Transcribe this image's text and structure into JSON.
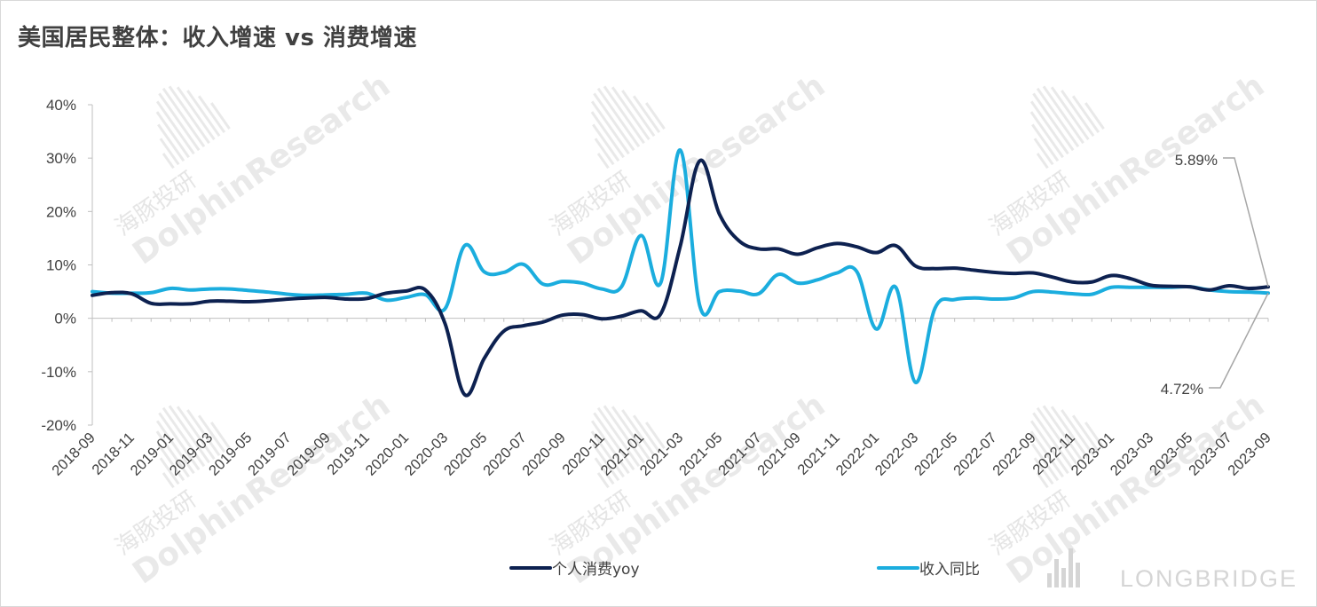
{
  "title": "美国居民整体：收入增速 vs 消费增速",
  "brand": "LONGBRIDGE",
  "watermark": {
    "text_cn": "海豚投研",
    "text_en": "DolphinResearch"
  },
  "colors": {
    "consumption": "#0d2150",
    "income": "#1badde",
    "axis": "#bfbfbf",
    "text": "#404040",
    "watermark": "#cfcfcf"
  },
  "chart_data": {
    "type": "line",
    "title": "美国居民整体：收入增速 vs 消费增速",
    "xlabel": "",
    "ylabel": "",
    "ylim": [
      -20,
      40
    ],
    "yticks": [
      -20,
      -10,
      0,
      10,
      20,
      30,
      40
    ],
    "ytick_labels": [
      "-20%",
      "-10%",
      "0%",
      "10%",
      "20%",
      "30%",
      "40%"
    ],
    "xtick_labels": [
      "2018-09",
      "2018-11",
      "2019-01",
      "2019-03",
      "2019-05",
      "2019-07",
      "2019-09",
      "2019-11",
      "2020-01",
      "2020-03",
      "2020-05",
      "2020-07",
      "2020-09",
      "2020-11",
      "2021-01",
      "2021-03",
      "2021-05",
      "2021-07",
      "2021-09",
      "2021-11",
      "2022-01",
      "2022-03",
      "2022-05",
      "2022-07",
      "2022-09",
      "2022-11",
      "2023-01",
      "2023-03",
      "2023-05",
      "2023-07",
      "2023-09"
    ],
    "legend_position": "bottom",
    "grid": false,
    "x": [
      "2018-09",
      "2018-10",
      "2018-11",
      "2018-12",
      "2019-01",
      "2019-02",
      "2019-03",
      "2019-04",
      "2019-05",
      "2019-06",
      "2019-07",
      "2019-08",
      "2019-09",
      "2019-10",
      "2019-11",
      "2019-12",
      "2020-01",
      "2020-02",
      "2020-03",
      "2020-04",
      "2020-05",
      "2020-06",
      "2020-07",
      "2020-08",
      "2020-09",
      "2020-10",
      "2020-11",
      "2020-12",
      "2021-01",
      "2021-02",
      "2021-03",
      "2021-04",
      "2021-05",
      "2021-06",
      "2021-07",
      "2021-08",
      "2021-09",
      "2021-10",
      "2021-11",
      "2021-12",
      "2022-01",
      "2022-02",
      "2022-03",
      "2022-04",
      "2022-05",
      "2022-06",
      "2022-07",
      "2022-08",
      "2022-09",
      "2022-10",
      "2022-11",
      "2022-12",
      "2023-01",
      "2023-02",
      "2023-03",
      "2023-04",
      "2023-05",
      "2023-06",
      "2023-07",
      "2023-08",
      "2023-09"
    ],
    "series": [
      {
        "name": "个人消费yoy",
        "values": [
          4.3,
          4.8,
          4.6,
          2.8,
          2.7,
          2.7,
          3.2,
          3.2,
          3.1,
          3.3,
          3.6,
          3.8,
          3.9,
          3.6,
          3.7,
          4.7,
          5.1,
          5.3,
          -1.0,
          -14.3,
          -7.5,
          -2.4,
          -1.4,
          -0.7,
          0.6,
          0.7,
          -0.1,
          0.4,
          1.4,
          0.8,
          13.5,
          29.5,
          19.5,
          14.5,
          13.0,
          13.0,
          12.0,
          13.2,
          14.0,
          13.4,
          12.3,
          13.6,
          9.8,
          9.3,
          9.4,
          9.0,
          8.6,
          8.4,
          8.5,
          7.7,
          6.8,
          6.8,
          8.0,
          7.4,
          6.2,
          6.0,
          5.9,
          5.3,
          6.1,
          5.6,
          5.89
        ]
      },
      {
        "name": "收入同比",
        "values": [
          5.0,
          4.7,
          4.7,
          4.8,
          5.6,
          5.3,
          5.5,
          5.5,
          5.2,
          4.9,
          4.5,
          4.3,
          4.4,
          4.5,
          4.7,
          3.4,
          3.9,
          4.4,
          1.8,
          13.6,
          8.7,
          8.6,
          10.1,
          6.4,
          6.9,
          6.6,
          5.5,
          5.9,
          15.5,
          6.6,
          31.5,
          2.3,
          5.0,
          5.1,
          4.6,
          8.2,
          6.6,
          7.2,
          8.5,
          8.8,
          -2.0,
          5.8,
          -12.0,
          1.9,
          3.5,
          3.8,
          3.6,
          3.8,
          5.0,
          4.9,
          4.6,
          4.5,
          5.8,
          5.8,
          5.8,
          5.8,
          5.9,
          5.3,
          5.0,
          4.9,
          4.72
        ]
      }
    ],
    "annotations": [
      {
        "text": "5.89%",
        "series": "个人消费yoy"
      },
      {
        "text": "4.72%",
        "series": "收入同比"
      }
    ]
  }
}
